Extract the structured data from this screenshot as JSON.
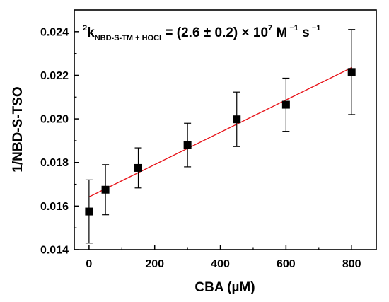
{
  "chart_data": {
    "type": "scatter",
    "xlabel": "CBA (µM)",
    "ylabel": "1/NBD-S-TSO",
    "xlim": [
      -45,
      875
    ],
    "ylim": [
      0.014,
      0.025
    ],
    "xticks": [
      0,
      200,
      400,
      600,
      800
    ],
    "yticks": [
      0.014,
      0.016,
      0.018,
      0.02,
      0.022,
      0.024
    ],
    "xtick_labels": [
      "0",
      "200",
      "400",
      "600",
      "800"
    ],
    "ytick_labels": [
      "0.014",
      "0.016",
      "0.018",
      "0.020",
      "0.022",
      "0.024"
    ],
    "series": [
      {
        "x": [
          0,
          50,
          150,
          300,
          450,
          600,
          800
        ],
        "y": [
          0.01575,
          0.01675,
          0.01775,
          0.0188,
          0.01998,
          0.02065,
          0.02215
        ],
        "yerr": [
          0.00145,
          0.00115,
          0.00092,
          0.001,
          0.00125,
          0.00122,
          0.00195
        ],
        "marker": "square",
        "color": "#000000"
      }
    ],
    "fit_line": {
      "x": [
        0,
        800
      ],
      "y": [
        0.01642,
        0.02235
      ],
      "color": "#e8141a"
    },
    "annotation": {
      "sup": "2",
      "k": "k",
      "sub": "NBD-S-TM + HOCl",
      "rest": " = (2.6 ± 0.2) × 10",
      "exp1": "7",
      "unit1": " M",
      "exp2": " −1",
      "unit2": " s",
      "exp3": " −1"
    },
    "grid": false,
    "legend": "none"
  }
}
